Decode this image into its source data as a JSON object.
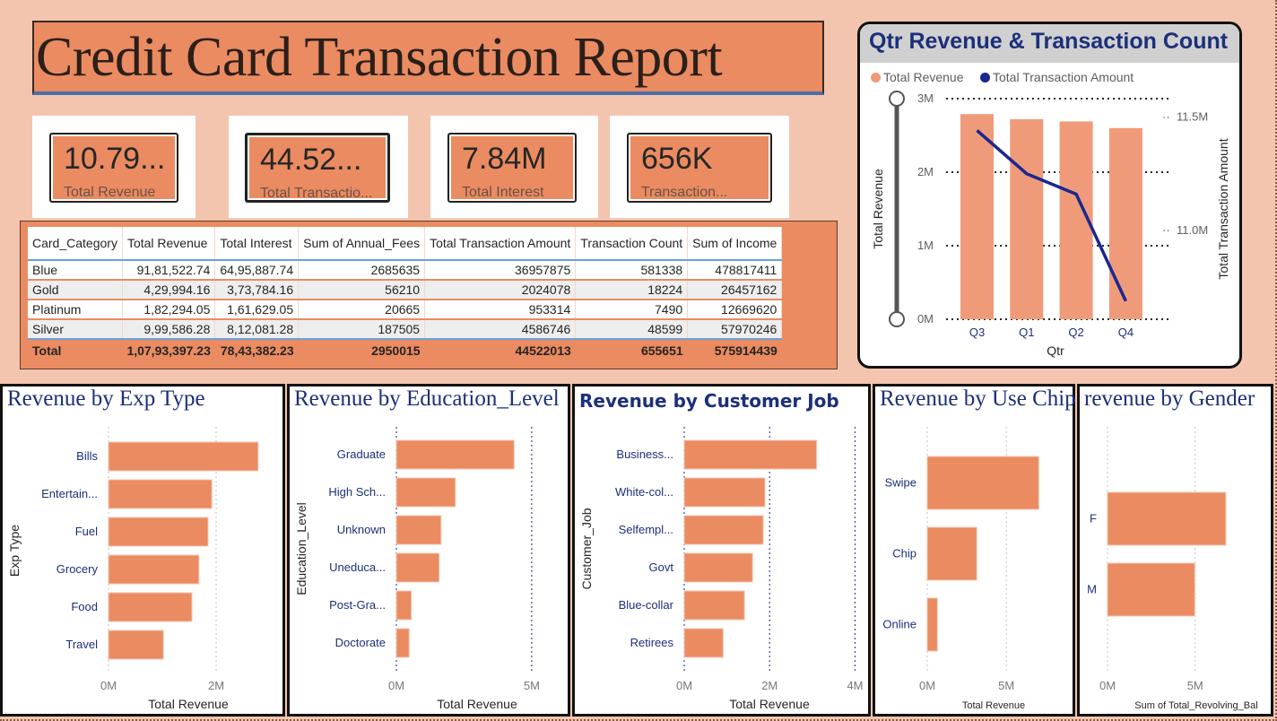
{
  "header": {
    "title": "Credit Card Transaction Report"
  },
  "kpis": [
    {
      "value": "10.79...",
      "label": "Total Revenue"
    },
    {
      "value": "44.52...",
      "label": "Total Transactio..."
    },
    {
      "value": "7.84M",
      "label": "Total Interest"
    },
    {
      "value": "656K",
      "label": "Transaction..."
    }
  ],
  "table": {
    "columns": [
      "Card_Category",
      "Total Revenue",
      "Total Interest",
      "Sum of Annual_Fees",
      "Total Transaction Amount",
      "Transaction Count",
      "Sum of Income"
    ],
    "rows": [
      [
        "Blue",
        "91,81,522.74",
        "64,95,887.74",
        "2685635",
        "36957875",
        "581338",
        "478817411"
      ],
      [
        "Gold",
        "4,29,994.16",
        "3,73,784.16",
        "56210",
        "2024078",
        "18224",
        "26457162"
      ],
      [
        "Platinum",
        "1,82,294.05",
        "1,61,629.05",
        "20665",
        "953314",
        "7490",
        "12669620"
      ],
      [
        "Silver",
        "9,99,586.28",
        "8,12,081.28",
        "187505",
        "4586746",
        "48599",
        "57970246"
      ]
    ],
    "total": [
      "Total",
      "1,07,93,397.23",
      "78,43,382.23",
      "2950015",
      "44522013",
      "655651",
      "575914439"
    ]
  },
  "colors": {
    "bar": "#ea8b61",
    "bar_qtr": "#ef9b7a",
    "line": "#1a2790",
    "title": "#1c2f7a",
    "label": "#1c2f7a"
  },
  "chart_data": [
    {
      "id": "qtr",
      "type": "bar+line",
      "title": "Qtr Revenue & Transaction Count",
      "legend": [
        "Total Revenue",
        "Total Transaction Amount"
      ],
      "legend_position": "top-left",
      "categories": [
        "Q3",
        "Q1",
        "Q2",
        "Q4"
      ],
      "series": [
        {
          "name": "Total Revenue",
          "type": "bar",
          "axis": "left",
          "values": [
            2790000,
            2720000,
            2690000,
            2600000
          ]
        },
        {
          "name": "Total Transaction Amount",
          "type": "line",
          "axis": "right",
          "values": [
            11440000,
            11250000,
            11160000,
            10690000
          ]
        }
      ],
      "xlabel": "Qtr",
      "ylabel": "Total Revenue",
      "y2label": "Total Transaction Amount",
      "ylim": [
        0,
        3000000
      ],
      "y2lim": [
        10610000,
        11580000
      ],
      "yticks": [
        "0M",
        "1M",
        "2M",
        "3M"
      ],
      "y2ticks": [
        "11.0M",
        "11.5M"
      ],
      "grid": true
    },
    {
      "id": "exp",
      "type": "bar",
      "orientation": "horizontal",
      "title": "Revenue by Exp Type",
      "categories": [
        "Bills",
        "Entertain...",
        "Fuel",
        "Grocery",
        "Food",
        "Travel"
      ],
      "values": [
        2780000,
        1920000,
        1850000,
        1680000,
        1550000,
        1020000
      ],
      "xlabel": "Total Revenue",
      "ylabel": "Exp Type",
      "xlim": [
        0,
        3000000
      ],
      "xticks": [
        [
          "0M",
          0
        ],
        [
          "2M",
          2000000
        ]
      ]
    },
    {
      "id": "edu",
      "type": "bar",
      "orientation": "horizontal",
      "title": "Revenue by Education_Level",
      "categories": [
        "Graduate",
        "High Sch...",
        "Unknown",
        "Uneduca...",
        "Post-Gra...",
        "Doctorate"
      ],
      "values": [
        4350000,
        2180000,
        1650000,
        1580000,
        550000,
        470000
      ],
      "xlabel": "Total Revenue",
      "ylabel": "Education_Level",
      "xlim": [
        0,
        5600000
      ],
      "xticks": [
        [
          "0M",
          0
        ],
        [
          "5M",
          5000000
        ]
      ]
    },
    {
      "id": "job",
      "type": "bar",
      "orientation": "horizontal",
      "title": "Revenue by Customer Job",
      "categories": [
        "Business...",
        "White-col...",
        "Selfempl...",
        "Govt",
        "Blue-collar",
        "Retirees"
      ],
      "values": [
        3100000,
        1890000,
        1850000,
        1600000,
        1410000,
        910000
      ],
      "xlabel": "Total Revenue",
      "ylabel": "Customer_Job",
      "xlim": [
        0,
        4200000
      ],
      "xticks": [
        [
          "0M",
          0
        ],
        [
          "2M",
          2000000
        ],
        [
          "4M",
          4000000
        ]
      ]
    },
    {
      "id": "chip",
      "type": "bar",
      "orientation": "horizontal",
      "title": "Revenue by Use Chip",
      "categories": [
        "Swipe",
        "Chip",
        "Online"
      ],
      "values": [
        7050000,
        3130000,
        640000
      ],
      "xlabel": "Total Revenue",
      "ylabel": "",
      "xlim": [
        0,
        8900000
      ],
      "xticks": [
        [
          "0M",
          0
        ],
        [
          "5M",
          5000000
        ]
      ]
    },
    {
      "id": "gender",
      "type": "bar",
      "orientation": "horizontal",
      "title": "revenue by Gender",
      "categories": [
        "F",
        "M"
      ],
      "values": [
        6750000,
        4980000
      ],
      "xlabel": "Sum of Total_Revolving_Bal",
      "ylabel": "",
      "xlim": [
        0,
        8800000
      ],
      "xticks": [
        [
          "0M",
          0
        ],
        [
          "5M",
          5000000
        ]
      ]
    }
  ]
}
